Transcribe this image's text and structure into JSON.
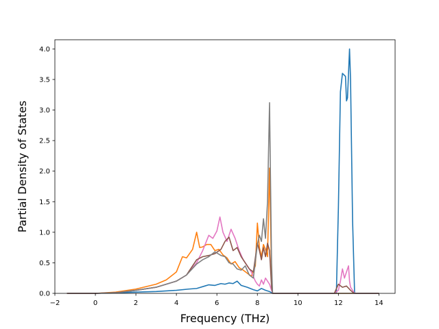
{
  "chart_data": {
    "type": "line",
    "title": "",
    "xlabel": "Frequency (THz)",
    "ylabel": "Partial Density of States",
    "xlim": [
      -2,
      14.8
    ],
    "ylim": [
      0,
      4.15
    ],
    "xticks": [
      -2,
      0,
      2,
      4,
      6,
      8,
      10,
      12,
      14
    ],
    "yticks": [
      0.0,
      0.5,
      1.0,
      1.5,
      2.0,
      2.5,
      3.0,
      3.5,
      4.0
    ],
    "xtick_labels": [
      "−2",
      "0",
      "2",
      "4",
      "6",
      "8",
      "10",
      "12",
      "14"
    ],
    "ytick_labels": [
      "0.0",
      "0.5",
      "1.0",
      "1.5",
      "2.0",
      "2.5",
      "3.0",
      "3.5",
      "4.0"
    ],
    "grid": false,
    "legend": "none",
    "series": [
      {
        "color": "#1f77b4",
        "x": [
          -1.4,
          0.0,
          1.0,
          2.0,
          3.0,
          4.0,
          4.6,
          5.0,
          5.4,
          5.6,
          5.9,
          6.2,
          6.4,
          6.6,
          6.8,
          7.0,
          7.2,
          7.5,
          7.8,
          8.0,
          8.2,
          8.4,
          8.6,
          8.75,
          9.0,
          11.0,
          11.9,
          12.0,
          12.1,
          12.2,
          12.35,
          12.4,
          12.45,
          12.55,
          12.6,
          12.7,
          12.8,
          13.0,
          14.0
        ],
        "y": [
          0,
          0,
          0.01,
          0.02,
          0.03,
          0.05,
          0.07,
          0.08,
          0.12,
          0.14,
          0.13,
          0.16,
          0.15,
          0.17,
          0.16,
          0.2,
          0.13,
          0.1,
          0.06,
          0.04,
          0.08,
          0.05,
          0.03,
          0.0,
          0.0,
          0.0,
          0.0,
          1.4,
          3.3,
          3.6,
          3.55,
          3.15,
          3.2,
          4.0,
          3.5,
          1.2,
          0.0,
          0.0,
          0.0
        ]
      },
      {
        "color": "#ff7f0e",
        "x": [
          -1.4,
          0.0,
          1.0,
          2.0,
          3.0,
          3.5,
          4.0,
          4.3,
          4.5,
          4.8,
          5.0,
          5.15,
          5.3,
          5.5,
          5.7,
          5.9,
          6.1,
          6.3,
          6.5,
          6.7,
          6.9,
          7.1,
          7.3,
          7.5,
          7.7,
          7.9,
          8.0,
          8.1,
          8.2,
          8.3,
          8.4,
          8.5,
          8.6,
          8.7,
          8.75,
          9.0,
          14.0
        ],
        "y": [
          0,
          0,
          0.02,
          0.07,
          0.15,
          0.22,
          0.35,
          0.6,
          0.58,
          0.72,
          1.0,
          0.75,
          0.76,
          0.8,
          0.8,
          0.7,
          0.72,
          0.63,
          0.58,
          0.48,
          0.52,
          0.42,
          0.38,
          0.33,
          0.28,
          0.45,
          1.15,
          0.75,
          0.6,
          0.8,
          0.72,
          0.6,
          2.05,
          0.3,
          0.0,
          0.0,
          0.0
        ]
      },
      {
        "color": "#e377c2",
        "x": [
          -1.4,
          0.0,
          1.0,
          2.0,
          3.0,
          4.0,
          4.5,
          5.0,
          5.3,
          5.6,
          5.8,
          6.0,
          6.15,
          6.3,
          6.5,
          6.7,
          6.9,
          7.1,
          7.3,
          7.5,
          7.7,
          7.9,
          8.0,
          8.1,
          8.2,
          8.3,
          8.4,
          8.5,
          8.6,
          8.7,
          8.75,
          9.0,
          11.8,
          12.0,
          12.1,
          12.2,
          12.3,
          12.4,
          12.5,
          12.55,
          12.6,
          12.7,
          12.8,
          14.0
        ],
        "y": [
          0,
          0,
          0.01,
          0.05,
          0.1,
          0.2,
          0.3,
          0.5,
          0.7,
          0.95,
          0.9,
          1.02,
          1.25,
          1.0,
          0.85,
          1.05,
          0.9,
          0.7,
          0.55,
          0.45,
          0.35,
          0.2,
          0.15,
          0.12,
          0.22,
          0.15,
          0.25,
          0.2,
          0.15,
          0.05,
          0.0,
          0.0,
          0.0,
          0.05,
          0.2,
          0.4,
          0.25,
          0.35,
          0.45,
          0.2,
          0.1,
          0.05,
          0.0,
          0.0
        ]
      },
      {
        "color": "#8c564b",
        "x": [
          -1.4,
          0.0,
          1.0,
          2.0,
          3.0,
          4.0,
          4.5,
          5.0,
          5.3,
          5.6,
          5.9,
          6.2,
          6.4,
          6.6,
          6.8,
          7.0,
          7.2,
          7.4,
          7.6,
          7.8,
          8.0,
          8.1,
          8.2,
          8.3,
          8.4,
          8.5,
          8.6,
          8.7,
          8.75,
          9.0,
          11.8,
          12.0,
          12.2,
          12.4,
          12.6,
          12.7,
          12.8,
          14.0
        ],
        "y": [
          0,
          0,
          0.01,
          0.05,
          0.1,
          0.2,
          0.3,
          0.55,
          0.6,
          0.62,
          0.65,
          0.72,
          0.85,
          0.92,
          0.7,
          0.75,
          0.6,
          0.5,
          0.4,
          0.35,
          0.82,
          0.7,
          0.55,
          0.75,
          0.6,
          0.82,
          0.7,
          0.1,
          0.0,
          0.0,
          0.0,
          0.15,
          0.1,
          0.12,
          0.05,
          0.02,
          0.0,
          0.0
        ]
      },
      {
        "color": "#7f7f7f",
        "x": [
          -1.4,
          0.0,
          1.0,
          2.0,
          3.0,
          4.0,
          4.5,
          5.0,
          5.3,
          5.6,
          5.9,
          6.2,
          6.4,
          6.6,
          6.8,
          7.0,
          7.2,
          7.4,
          7.6,
          7.8,
          8.0,
          8.1,
          8.2,
          8.3,
          8.4,
          8.5,
          8.6,
          8.7,
          8.75,
          9.0,
          14.0
        ],
        "y": [
          0,
          0,
          0.01,
          0.05,
          0.1,
          0.2,
          0.3,
          0.48,
          0.55,
          0.6,
          0.68,
          0.62,
          0.6,
          0.5,
          0.48,
          0.4,
          0.38,
          0.45,
          0.3,
          0.25,
          0.8,
          0.95,
          0.85,
          1.22,
          0.9,
          1.5,
          3.12,
          0.5,
          0.0,
          0.0,
          0.0
        ]
      }
    ]
  }
}
